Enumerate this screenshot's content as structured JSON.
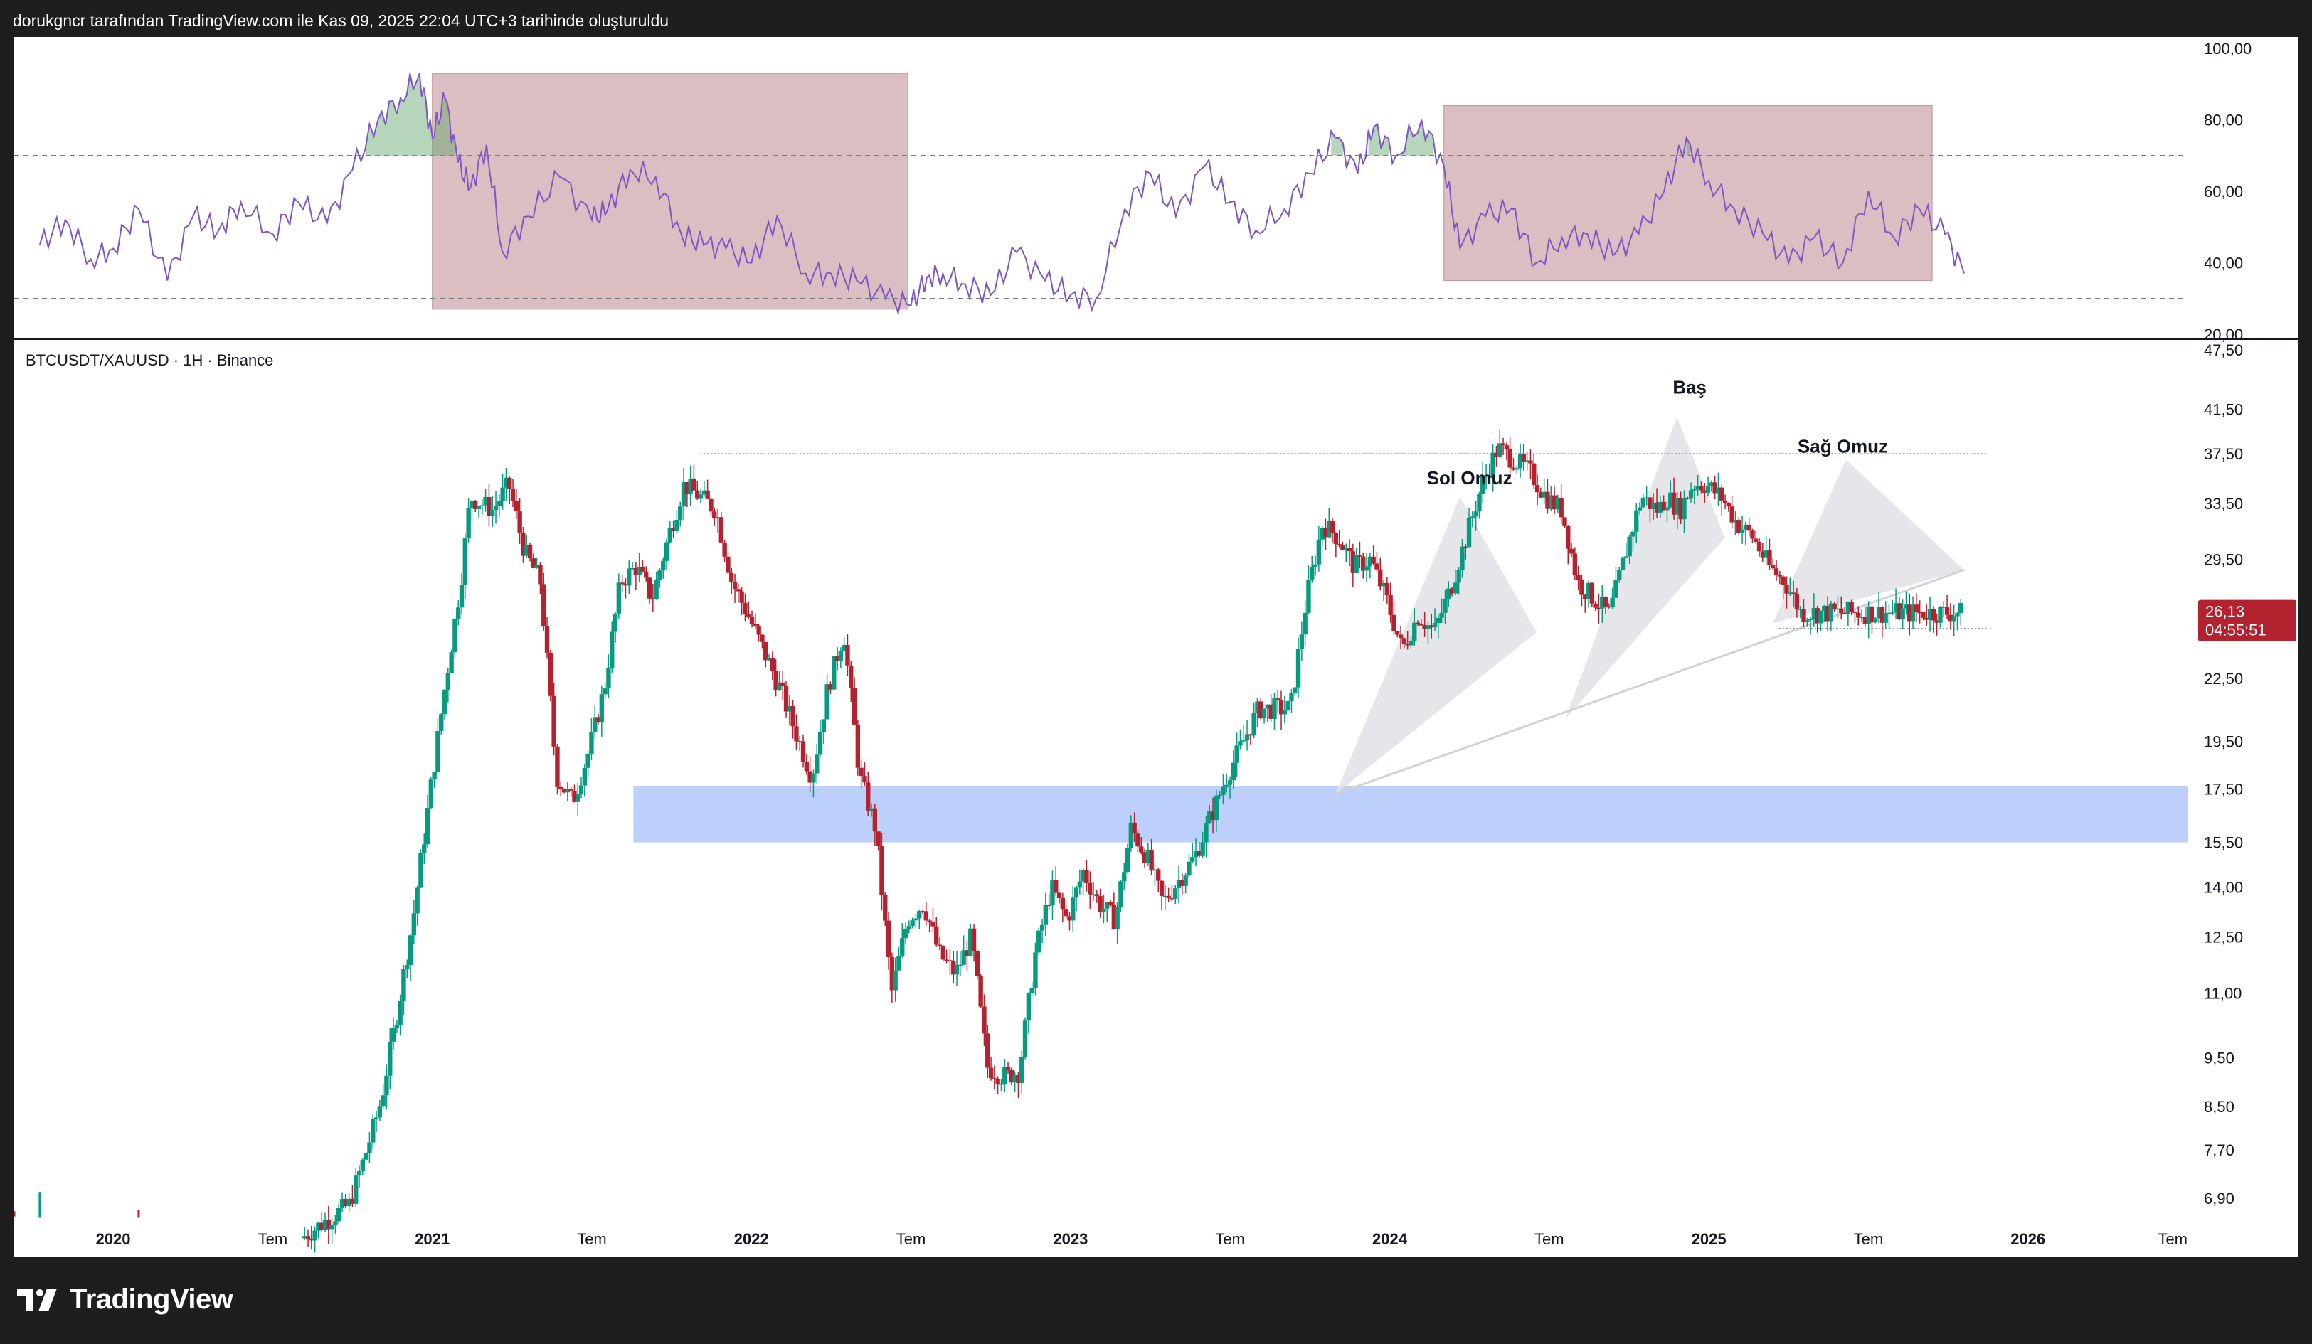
{
  "header": {
    "caption": "dorukgncr tarafından TradingView.com ile Kas 09, 2025 22:04 UTC+3 tarihinde oluşturuldu"
  },
  "brand": {
    "name": "TradingView",
    "logo_icon": "tradingview-logo-icon"
  },
  "colors": {
    "bull": "#089981",
    "bear": "#b2222f",
    "rsi_line": "#7e57c2",
    "rsi_box": "#d6b8bc",
    "zone": "#b9cdfb",
    "pattern": "#e3e3e8",
    "price_label": "#b2222f"
  },
  "chart_data": [
    {
      "type": "line",
      "name": "oscillator",
      "x": [
        2019.77,
        2019.85,
        2019.93,
        2020.0,
        2020.08,
        2020.17,
        2020.25,
        2020.33,
        2020.4,
        2020.5,
        2020.58,
        2020.67,
        2020.75,
        2020.83,
        2020.9,
        2020.96,
        2021.0,
        2021.04,
        2021.08,
        2021.12,
        2021.17,
        2021.22,
        2021.3,
        2021.4,
        2021.5,
        2021.55,
        2021.62,
        2021.7,
        2021.78,
        2021.85,
        2021.92,
        2022.0,
        2022.08,
        2022.17,
        2022.25,
        2022.33,
        2022.42,
        2022.5,
        2022.55,
        2022.6,
        2022.67,
        2022.75,
        2022.83,
        2022.92,
        2023.0,
        2023.08,
        2023.17,
        2023.25,
        2023.33,
        2023.42,
        2023.5,
        2023.58,
        2023.67,
        2023.75,
        2023.83,
        2023.9,
        2023.95,
        2024.02,
        2024.1,
        2024.17,
        2024.22,
        2024.3,
        2024.38,
        2024.46,
        2024.54,
        2024.62,
        2024.7,
        2024.78,
        2024.86,
        2024.93,
        2025.0,
        2025.08,
        2025.17,
        2025.25,
        2025.33,
        2025.42,
        2025.5,
        2025.58,
        2025.66,
        2025.74,
        2025.8
      ],
      "y": [
        45,
        52,
        41,
        44,
        55,
        35,
        53,
        49,
        57,
        48,
        57,
        51,
        66,
        80,
        86,
        93,
        75,
        86,
        68,
        61,
        73,
        43,
        53,
        64,
        52,
        55,
        66,
        64,
        48,
        45,
        44,
        40,
        53,
        37,
        37,
        35,
        30,
        28,
        36,
        37,
        34,
        31,
        43,
        35,
        31,
        30,
        55,
        65,
        53,
        67,
        57,
        49,
        55,
        65,
        75,
        65,
        78,
        70,
        80,
        67,
        44,
        53,
        55,
        40,
        47,
        48,
        42,
        48,
        60,
        75,
        63,
        55,
        48,
        40,
        47,
        40,
        60,
        47,
        55,
        48,
        37
      ],
      "xlim": [
        2019.69,
        2026.5
      ],
      "ylim": [
        20,
        100
      ],
      "y_ticks": [
        "100,00",
        "80,00",
        "60,00",
        "40,00",
        "20,00"
      ],
      "reference_lines": [
        70,
        30
      ],
      "grid": false,
      "shaded_boxes": [
        {
          "x0": 2021.0,
          "x1": 2022.49,
          "y0": 27,
          "y1": 93
        },
        {
          "x0": 2024.17,
          "x1": 2025.7,
          "y0": 35,
          "y1": 84
        }
      ]
    },
    {
      "type": "candlestick",
      "title": "BTCUSDT/XAUUSD · 1H · Binance",
      "y_scale": "log",
      "ylim": [
        6.5,
        47.5
      ],
      "y_ticks": [
        "47,50",
        "41,50",
        "37,50",
        "33,50",
        "29,50",
        "22,50",
        "19,50",
        "17,50",
        "15,50",
        "14,00",
        "12,50",
        "11,00",
        "9,50",
        "8,50",
        "7,70",
        "6,90"
      ],
      "x_ticks": [
        "2020",
        "Tem",
        "2021",
        "Tem",
        "2022",
        "Tem",
        "2023",
        "Tem",
        "2024",
        "Tem",
        "2025",
        "Tem",
        "2026",
        "Tem"
      ],
      "xlim": [
        2019.69,
        2026.5
      ],
      "grid": false,
      "keypoints_x": [
        2020.05,
        2020.4,
        2020.6,
        2020.75,
        2020.8,
        2020.85,
        2020.9,
        2020.95,
        2021.0,
        2021.05,
        2021.1,
        2021.13,
        2021.2,
        2021.25,
        2021.3,
        2021.35,
        2021.4,
        2021.45,
        2021.5,
        2021.55,
        2021.6,
        2021.65,
        2021.7,
        2021.75,
        2021.8,
        2021.85,
        2021.9,
        2021.95,
        2022.0,
        2022.1,
        2022.2,
        2022.25,
        2022.3,
        2022.35,
        2022.4,
        2022.45,
        2022.5,
        2022.55,
        2022.6,
        2022.65,
        2022.7,
        2022.75,
        2022.8,
        2022.85,
        2022.9,
        2022.95,
        2023.0,
        2023.05,
        2023.1,
        2023.15,
        2023.2,
        2023.25,
        2023.3,
        2023.4,
        2023.5,
        2023.6,
        2023.7,
        2023.75,
        2023.8,
        2023.85,
        2023.9,
        2023.95,
        2024.0,
        2024.05,
        2024.1,
        2024.15,
        2024.2,
        2024.25,
        2024.3,
        2024.35,
        2024.4,
        2024.45,
        2024.5,
        2024.55,
        2024.6,
        2024.65,
        2024.7,
        2024.75,
        2024.8,
        2024.85,
        2024.88,
        2024.92,
        2024.96,
        2025.0,
        2025.05,
        2025.1,
        2025.15,
        2025.2,
        2025.25,
        2025.3,
        2025.35,
        2025.4,
        2025.45,
        2025.5,
        2025.55,
        2025.6,
        2025.65,
        2025.7,
        2025.75,
        2025.82
      ],
      "keypoints_price": [
        6.0,
        6.1,
        6.3,
        6.8,
        7.6,
        8.6,
        10.5,
        13.0,
        17.0,
        22.0,
        28.0,
        34.0,
        33.0,
        35.0,
        30.0,
        28.0,
        18.0,
        17.0,
        19.0,
        22.0,
        28.0,
        29.0,
        27.0,
        31.0,
        35.0,
        34.0,
        33.0,
        28.0,
        26.0,
        22.0,
        18.0,
        22.0,
        25.0,
        18.0,
        16.0,
        11.0,
        13.0,
        13.5,
        12.0,
        11.5,
        12.5,
        9.3,
        9.1,
        9.2,
        12.0,
        14.0,
        13.0,
        14.5,
        13.5,
        13.0,
        16.0,
        15.0,
        13.5,
        15.0,
        18.0,
        21.0,
        21.0,
        27.0,
        32.0,
        31.0,
        29.0,
        29.5,
        27.0,
        24.0,
        26.0,
        25.0,
        27.5,
        31.0,
        35.0,
        38.0,
        37.0,
        36.0,
        34.0,
        33.0,
        28.0,
        27.0,
        26.0,
        30.0,
        34.0,
        33.0,
        34.0,
        33.0,
        35.0,
        35.0,
        34.0,
        32.0,
        31.0,
        29.0,
        28.0,
        26.13,
        26.13,
        26.13,
        26.13,
        26.13,
        26.13,
        26.13,
        26.13,
        26.13,
        26.13,
        26.13
      ],
      "last_price": {
        "value": "26,13",
        "countdown": "04:55:51"
      },
      "annotations": [
        {
          "text": "Sol Omuz",
          "x": 2024.25,
          "price": 35.0
        },
        {
          "text": "Baş",
          "x": 2024.94,
          "price": 43.0
        },
        {
          "text": "Sağ Omuz",
          "x": 2025.42,
          "price": 37.6
        }
      ],
      "neckline": {
        "x0": 2023.83,
        "p0": 17.3,
        "x1": 2025.8,
        "p1": 28.8
      },
      "resistance_line": {
        "x0": 2021.84,
        "x1": 2025.87,
        "price": 37.5
      },
      "support_line": {
        "x0": 2025.22,
        "x1": 2025.87,
        "price": 25.2
      },
      "support_zone": {
        "x0": 2021.63,
        "x1": 2026.5,
        "p0": 15.5,
        "p1": 17.6
      }
    }
  ]
}
